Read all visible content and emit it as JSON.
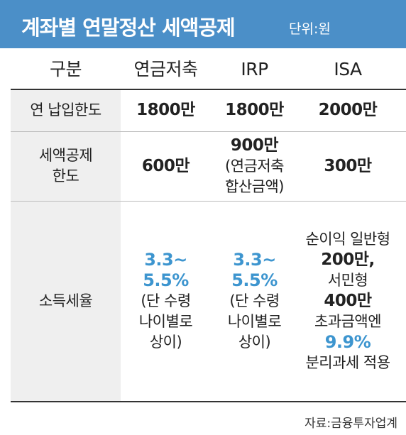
{
  "header": {
    "title": "계좌별 연말정산 세액공제",
    "unit": "단위:원"
  },
  "table": {
    "columns": [
      "구분",
      "연금저축",
      "IRP",
      "ISA"
    ],
    "rows": [
      [
        [
          {
            "text": "연 납입한도",
            "style": "normal"
          }
        ],
        [
          {
            "text": "1800만",
            "style": "bold"
          }
        ],
        [
          {
            "text": "1800만",
            "style": "bold"
          }
        ],
        [
          {
            "text": "2000만",
            "style": "bold"
          }
        ]
      ],
      [
        [
          {
            "text": "세액공제",
            "style": "normal"
          },
          {
            "text": "한도",
            "style": "normal"
          }
        ],
        [
          {
            "text": "600만",
            "style": "bold"
          }
        ],
        [
          {
            "text": "900만",
            "style": "bold"
          },
          {
            "text": "(연금저축",
            "style": "normal"
          },
          {
            "text": "합산금액)",
            "style": "normal"
          }
        ],
        [
          {
            "text": "300만",
            "style": "bold"
          }
        ]
      ],
      [
        [
          {
            "text": "소득세율",
            "style": "normal"
          }
        ],
        [
          {
            "text": "3.3~",
            "style": "blue"
          },
          {
            "text": "5.5%",
            "style": "blue"
          },
          {
            "text": "(단 수령",
            "style": "normal"
          },
          {
            "text": "나이별로",
            "style": "normal"
          },
          {
            "text": "상이)",
            "style": "normal"
          }
        ],
        [
          {
            "text": "3.3~",
            "style": "blue"
          },
          {
            "text": "5.5%",
            "style": "blue"
          },
          {
            "text": "(단 수령",
            "style": "normal"
          },
          {
            "text": "나이별로",
            "style": "normal"
          },
          {
            "text": "상이)",
            "style": "normal"
          }
        ],
        [
          {
            "text": "순이익 일반형",
            "style": "normal"
          },
          {
            "text": "200만,",
            "style": "bold"
          },
          {
            "text": "서민형",
            "style": "normal"
          },
          {
            "text": "400만",
            "style": "bold"
          },
          {
            "text": "초과금액엔",
            "style": "normal"
          },
          {
            "text": "9.9%",
            "style": "blue"
          },
          {
            "text": "분리과세 적용",
            "style": "normal"
          }
        ]
      ]
    ]
  },
  "source": "자료:금융투자업계"
}
